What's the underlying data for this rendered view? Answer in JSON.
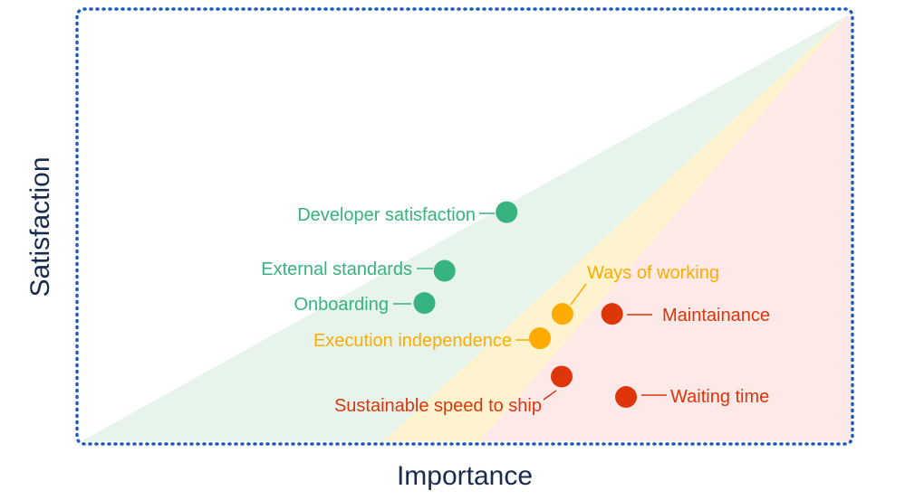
{
  "chart_data": {
    "type": "scatter",
    "xlabel": "Importance",
    "ylabel": "Satisfaction",
    "xlim": [
      0,
      100
    ],
    "ylim": [
      0,
      100
    ],
    "grid": false,
    "legend": "none",
    "zones": [
      {
        "name": "green",
        "color": "#e6f4ec"
      },
      {
        "name": "yellow",
        "color": "#fdf4cf"
      },
      {
        "name": "red",
        "color": "#fde9e7"
      }
    ],
    "series": [
      {
        "color": "#36b37e",
        "points": [
          {
            "label": "Developer satisfaction",
            "x": 55.4,
            "y": 53.3
          },
          {
            "label": "External standards",
            "x": 47.4,
            "y": 39.8
          },
          {
            "label": "Onboarding",
            "x": 44.8,
            "y": 32.4
          }
        ]
      },
      {
        "color": "#ffab00",
        "points": [
          {
            "label": "Ways of working",
            "x": 62.6,
            "y": 29.9
          },
          {
            "label": "Execution independence",
            "x": 59.7,
            "y": 24.3
          }
        ]
      },
      {
        "color": "#de350b",
        "points": [
          {
            "label": "Maintainance",
            "x": 69.0,
            "y": 29.9
          },
          {
            "label": "Sustainable speed to ship",
            "x": 62.5,
            "y": 15.5
          },
          {
            "label": "Waiting time",
            "x": 70.8,
            "y": 10.8
          }
        ]
      }
    ]
  },
  "frame_color": "#1d5bbf",
  "axis_title_color": "#172b4d"
}
